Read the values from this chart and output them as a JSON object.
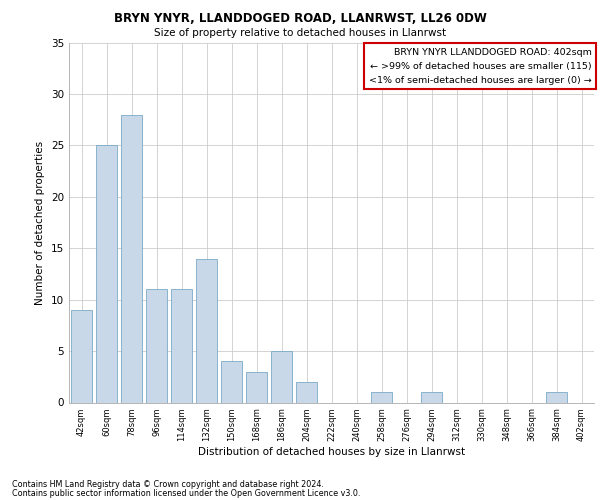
{
  "title1": "BRYN YNYR, LLANDDOGED ROAD, LLANRWST, LL26 0DW",
  "title2": "Size of property relative to detached houses in Llanrwst",
  "xlabel": "Distribution of detached houses by size in Llanrwst",
  "ylabel": "Number of detached properties",
  "categories": [
    "42sqm",
    "60sqm",
    "78sqm",
    "96sqm",
    "114sqm",
    "132sqm",
    "150sqm",
    "168sqm",
    "186sqm",
    "204sqm",
    "222sqm",
    "240sqm",
    "258sqm",
    "276sqm",
    "294sqm",
    "312sqm",
    "330sqm",
    "348sqm",
    "366sqm",
    "384sqm",
    "402sqm"
  ],
  "values": [
    9,
    25,
    28,
    11,
    11,
    14,
    4,
    3,
    5,
    2,
    0,
    0,
    1,
    0,
    1,
    0,
    0,
    0,
    0,
    1,
    0
  ],
  "bar_color": "#c8d8e8",
  "bar_edge_color": "#7aaac8",
  "ylim": [
    0,
    35
  ],
  "yticks": [
    0,
    5,
    10,
    15,
    20,
    25,
    30,
    35
  ],
  "annotation_box_text": "BRYN YNYR LLANDDOGED ROAD: 402sqm\n← >99% of detached houses are smaller (115)\n<1% of semi-detached houses are larger (0) →",
  "annotation_box_color": "#ffffff",
  "annotation_box_edge_color": "#cc0000",
  "footer_line1": "Contains HM Land Registry data © Crown copyright and database right 2024.",
  "footer_line2": "Contains public sector information licensed under the Open Government Licence v3.0.",
  "bg_color": "#ffffff",
  "grid_color": "#cccccc"
}
